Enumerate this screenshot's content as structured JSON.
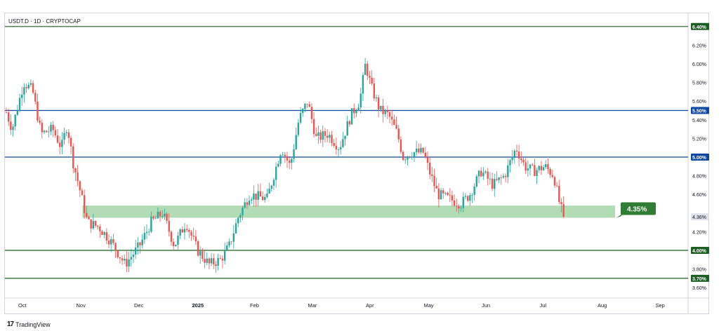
{
  "header": {
    "symbol_title": "USDT.D · 1D · CRYPTOCAP"
  },
  "footer": {
    "brand": "TradingView",
    "logo_icon": "tradingview-logo-icon"
  },
  "colors": {
    "up": "#26a69a",
    "down": "#ef5350",
    "support_line": "#1b5e20",
    "resistance_line": "#0d47a1",
    "zone_fill": "#a5d6a7",
    "callout": "#2e7d32"
  },
  "callout": {
    "label": "4.35%"
  },
  "chart_data": {
    "type": "candlestick",
    "title": "USDT.D · 1D · CRYPTOCAP",
    "x_axis": {
      "labels": [
        "Oct",
        "Nov",
        "Dec",
        "2025",
        "Feb",
        "Mar",
        "Apr",
        "May",
        "Jun",
        "Jul",
        "Aug",
        "Sep"
      ]
    },
    "y_axis": {
      "unit": "%",
      "range": [
        3.5,
        6.5
      ],
      "ticks": [
        "3.60%",
        "3.80%",
        "4.20%",
        "4.60%",
        "4.80%",
        "5.20%",
        "5.40%",
        "5.60%",
        "5.80%",
        "6.00%",
        "6.20%"
      ]
    },
    "last_price": {
      "value": 4.36,
      "label": "4.36%"
    },
    "horizontal_levels": [
      {
        "value": 6.4,
        "label": "6.40%",
        "color": "#1b5e20"
      },
      {
        "value": 5.5,
        "label": "5.50%",
        "color": "#0d47a1"
      },
      {
        "value": 5.0,
        "label": "5.00%",
        "color": "#0d47a1"
      },
      {
        "value": 4.0,
        "label": "4.00%",
        "color": "#1b5e20"
      },
      {
        "value": 3.7,
        "label": "3.70%",
        "color": "#1b5e20"
      }
    ],
    "zone": {
      "low": 4.35,
      "high": 4.48,
      "start": "Nov",
      "end": "Aug",
      "label": "4.35%"
    },
    "close_path": [
      {
        "x": 0.0,
        "y": 5.48
      },
      {
        "x": 0.1,
        "y": 5.3
      },
      {
        "x": 0.3,
        "y": 5.8
      },
      {
        "x": 0.45,
        "y": 5.72
      },
      {
        "x": 0.6,
        "y": 5.25
      },
      {
        "x": 0.8,
        "y": 5.3
      },
      {
        "x": 0.95,
        "y": 5.1
      },
      {
        "x": 1.05,
        "y": 5.35
      },
      {
        "x": 1.15,
        "y": 4.95
      },
      {
        "x": 1.25,
        "y": 4.7
      },
      {
        "x": 1.4,
        "y": 4.3
      },
      {
        "x": 1.6,
        "y": 4.25
      },
      {
        "x": 1.8,
        "y": 4.1
      },
      {
        "x": 2.05,
        "y": 3.85
      },
      {
        "x": 2.3,
        "y": 4.05
      },
      {
        "x": 2.5,
        "y": 4.3
      },
      {
        "x": 2.7,
        "y": 4.4
      },
      {
        "x": 2.9,
        "y": 4.05
      },
      {
        "x": 3.1,
        "y": 4.3
      },
      {
        "x": 3.3,
        "y": 4.0
      },
      {
        "x": 3.5,
        "y": 3.85
      },
      {
        "x": 3.7,
        "y": 3.9
      },
      {
        "x": 3.85,
        "y": 4.05
      },
      {
        "x": 4.0,
        "y": 4.35
      },
      {
        "x": 4.2,
        "y": 4.6
      },
      {
        "x": 4.5,
        "y": 4.55
      },
      {
        "x": 4.75,
        "y": 5.1
      },
      {
        "x": 4.9,
        "y": 4.9
      },
      {
        "x": 5.05,
        "y": 5.4
      },
      {
        "x": 5.2,
        "y": 5.6
      },
      {
        "x": 5.35,
        "y": 5.2
      },
      {
        "x": 5.55,
        "y": 5.25
      },
      {
        "x": 5.75,
        "y": 5.1
      },
      {
        "x": 5.95,
        "y": 5.45
      },
      {
        "x": 6.1,
        "y": 5.6
      },
      {
        "x": 6.2,
        "y": 6.0
      },
      {
        "x": 6.3,
        "y": 5.75
      },
      {
        "x": 6.45,
        "y": 5.5
      },
      {
        "x": 6.6,
        "y": 5.45
      },
      {
        "x": 6.75,
        "y": 5.25
      },
      {
        "x": 6.85,
        "y": 5.0
      },
      {
        "x": 7.0,
        "y": 5.05
      },
      {
        "x": 7.2,
        "y": 5.05
      },
      {
        "x": 7.3,
        "y": 4.85
      },
      {
        "x": 7.45,
        "y": 4.6
      },
      {
        "x": 7.65,
        "y": 4.55
      },
      {
        "x": 7.85,
        "y": 4.5
      },
      {
        "x": 8.0,
        "y": 4.6
      },
      {
        "x": 8.2,
        "y": 4.85
      },
      {
        "x": 8.4,
        "y": 4.7
      },
      {
        "x": 8.6,
        "y": 4.8
      },
      {
        "x": 8.8,
        "y": 5.1
      },
      {
        "x": 8.95,
        "y": 4.9
      },
      {
        "x": 9.1,
        "y": 4.85
      },
      {
        "x": 9.3,
        "y": 4.9
      },
      {
        "x": 9.45,
        "y": 4.8
      },
      {
        "x": 9.55,
        "y": 4.5
      },
      {
        "x": 9.62,
        "y": 4.36
      }
    ]
  }
}
